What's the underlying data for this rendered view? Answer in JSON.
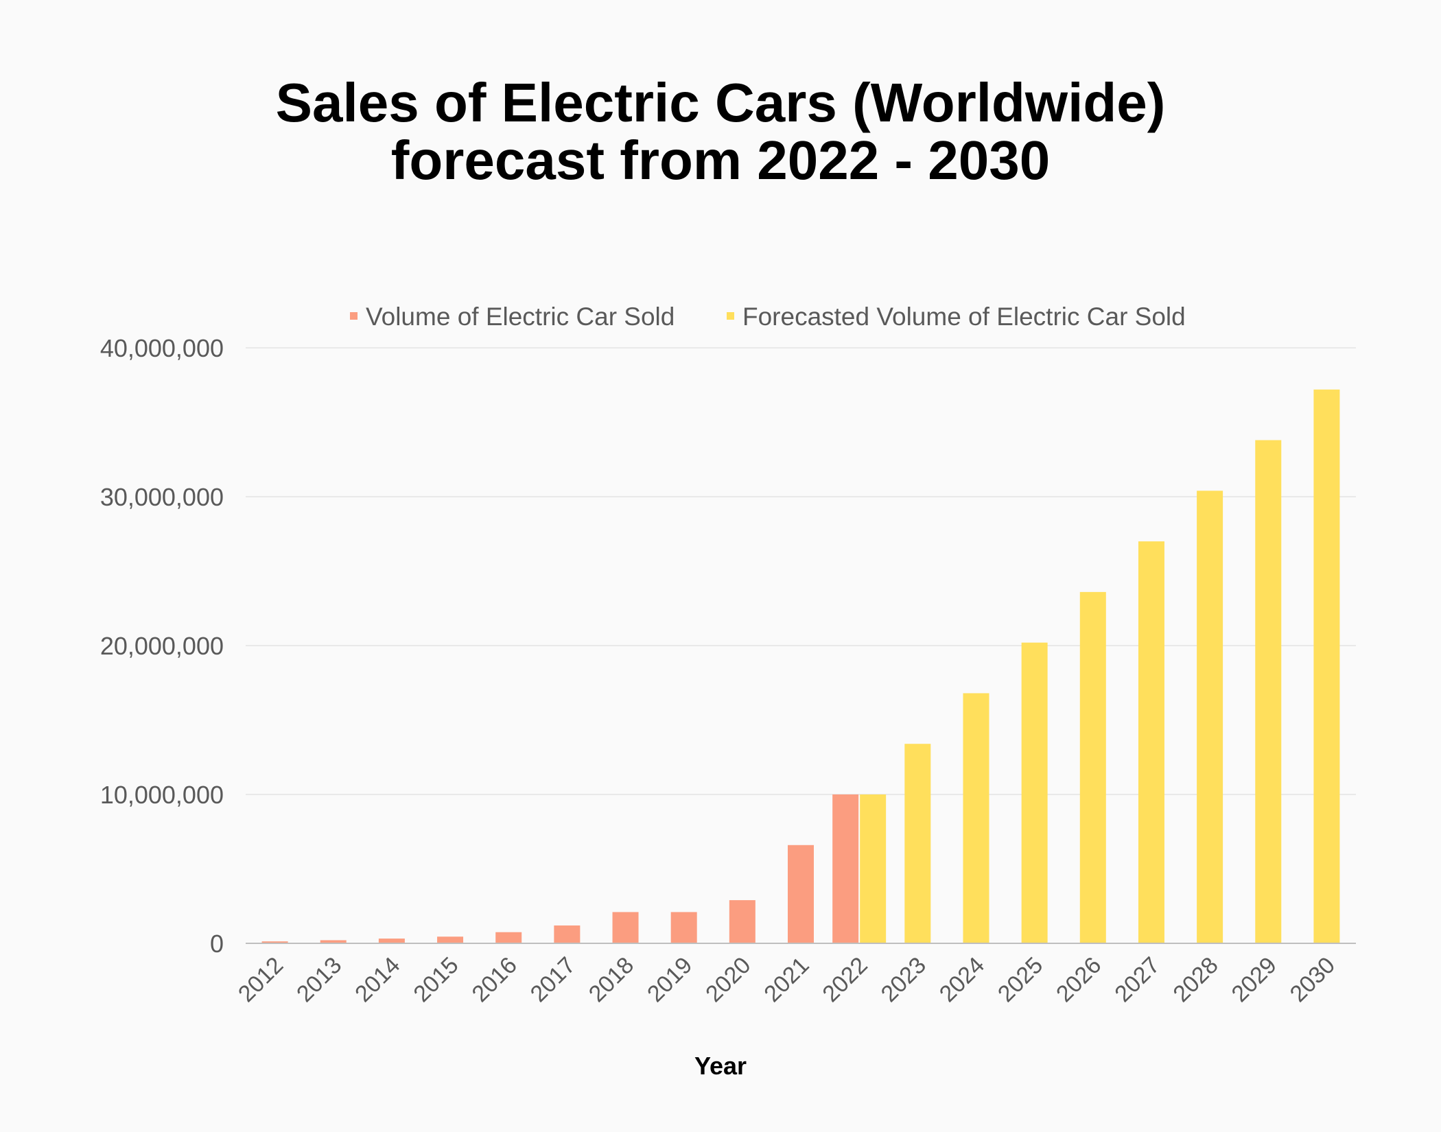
{
  "chart_data": {
    "type": "bar",
    "title_line1": "Sales of Electric Cars (Worldwide)",
    "title_line2": "forecast from 2022 - 2030",
    "xlabel": "Year",
    "ylabel": "",
    "ylim": [
      0,
      40000000
    ],
    "yticks": [
      {
        "value": 0,
        "label": "0"
      },
      {
        "value": 10000000,
        "label": "10,000,000"
      },
      {
        "value": 20000000,
        "label": "20,000,000"
      },
      {
        "value": 30000000,
        "label": "30,000,000"
      },
      {
        "value": 40000000,
        "label": "40,000,000"
      }
    ],
    "grid": true,
    "legend_position": "top",
    "categories": [
      "2012",
      "2013",
      "2014",
      "2015",
      "2016",
      "2017",
      "2018",
      "2019",
      "2020",
      "2021",
      "2022",
      "2023",
      "2024",
      "2025",
      "2026",
      "2027",
      "2028",
      "2029",
      "2030"
    ],
    "series": [
      {
        "name": "Volume of Electric Car Sold",
        "color": "#fb9d80",
        "values": [
          130000,
          210000,
          320000,
          450000,
          750000,
          1200000,
          2100000,
          2100000,
          2900000,
          6600000,
          10000000,
          null,
          null,
          null,
          null,
          null,
          null,
          null,
          null
        ]
      },
      {
        "name": "Forecasted Volume of Electric Car Sold",
        "color": "#ffdf5c",
        "values": [
          null,
          null,
          null,
          null,
          null,
          null,
          null,
          null,
          null,
          null,
          10000000,
          13400000,
          16800000,
          20200000,
          23600000,
          27000000,
          30400000,
          33800000,
          37200000
        ]
      }
    ]
  },
  "colors": {
    "background": "#fafafa",
    "gridline": "#e3e3e3",
    "axis": "#bfbfbf",
    "tick_label": "#595959",
    "title": "#000000"
  }
}
